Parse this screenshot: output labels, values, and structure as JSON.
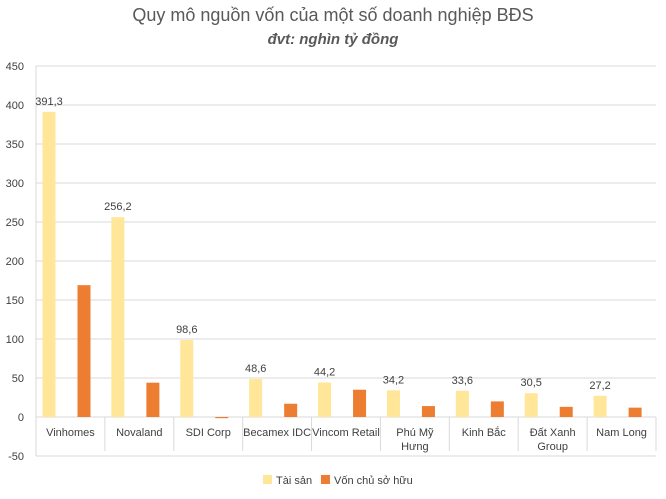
{
  "chart_data": {
    "type": "bar",
    "title": "Quy mô nguồn vốn của một số doanh nghiệp BĐS",
    "subtitle": "đvt: nghìn tỷ đồng",
    "categories": [
      "Vinhomes",
      "Novaland",
      "SDI Corp",
      "Becamex IDC",
      "Vincom Retail",
      "Phú Mỹ Hưng",
      "Kinh Bắc",
      "Đất Xanh Group",
      "Nam Long"
    ],
    "category_lines": [
      [
        "Vinhomes"
      ],
      [
        "Novaland"
      ],
      [
        "SDI Corp"
      ],
      [
        "Becamex IDC"
      ],
      [
        "Vincom Retail"
      ],
      [
        "Phú Mỹ",
        "Hưng"
      ],
      [
        "Kinh Bắc"
      ],
      [
        "Đất Xanh",
        "Group"
      ],
      [
        "Nam Long"
      ]
    ],
    "series": [
      {
        "name": "Tài sản",
        "color": "#FFE699",
        "values": [
          391.3,
          256.2,
          98.6,
          48.6,
          44.2,
          34.2,
          33.6,
          30.5,
          27.2
        ],
        "labels": [
          "391,3",
          "256,2",
          "98,6",
          "48,6",
          "44,2",
          "34,2",
          "33,6",
          "30,5",
          "27,2"
        ]
      },
      {
        "name": "Vốn chủ sở hữu",
        "color": "#ED7D31",
        "values": [
          169,
          44,
          -1.5,
          17,
          35,
          14,
          20,
          13,
          12
        ]
      }
    ],
    "ylim": [
      -50,
      450
    ],
    "yticks": [
      -50,
      0,
      50,
      100,
      150,
      200,
      250,
      300,
      350,
      400,
      450
    ],
    "grid": true,
    "legend": "bottom"
  }
}
